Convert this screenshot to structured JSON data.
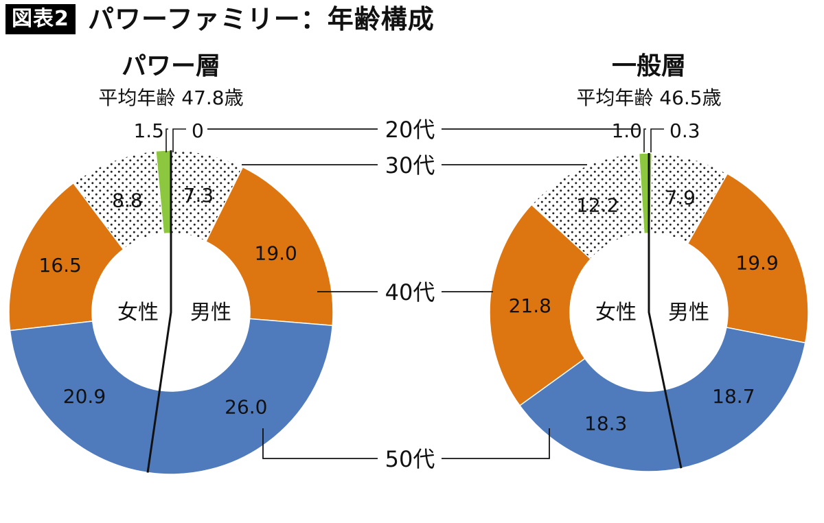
{
  "header": {
    "badge": "図表2",
    "title": "パワーファミリー：年齢構成"
  },
  "colors": {
    "age20": "#8dc63f",
    "age30": "dotted",
    "age40": "#dd7510",
    "age50": "#4f7bbd"
  },
  "chart_data": [
    {
      "type": "donut",
      "title": "パワー層",
      "subtitle": "平均年齢 47.8歳",
      "center_labels": [
        "女性",
        "男性"
      ],
      "categories": [
        "20代",
        "30代",
        "40代",
        "50代"
      ],
      "series": [
        {
          "name": "男性",
          "values": [
            0,
            7.3,
            19.0,
            26.0
          ]
        },
        {
          "name": "女性",
          "values": [
            1.5,
            8.8,
            16.5,
            20.9
          ]
        }
      ],
      "labels": {
        "男性": [
          "0",
          "7.3",
          "19.0",
          "26.0"
        ],
        "女性": [
          "1.5",
          "8.8",
          "16.5",
          "20.9"
        ]
      }
    },
    {
      "type": "donut",
      "title": "一般層",
      "subtitle": "平均年齢 46.5歳",
      "center_labels": [
        "女性",
        "男性"
      ],
      "categories": [
        "20代",
        "30代",
        "40代",
        "50代"
      ],
      "series": [
        {
          "name": "男性",
          "values": [
            0.3,
            7.9,
            19.9,
            18.7
          ]
        },
        {
          "name": "女性",
          "values": [
            1.0,
            12.2,
            21.8,
            18.3
          ]
        }
      ],
      "labels": {
        "男性": [
          "0.3",
          "7.9",
          "19.9",
          "18.7"
        ],
        "女性": [
          "1.0",
          "12.2",
          "21.8",
          "18.3"
        ]
      }
    }
  ],
  "legend": [
    "20代",
    "30代",
    "40代",
    "50代"
  ]
}
